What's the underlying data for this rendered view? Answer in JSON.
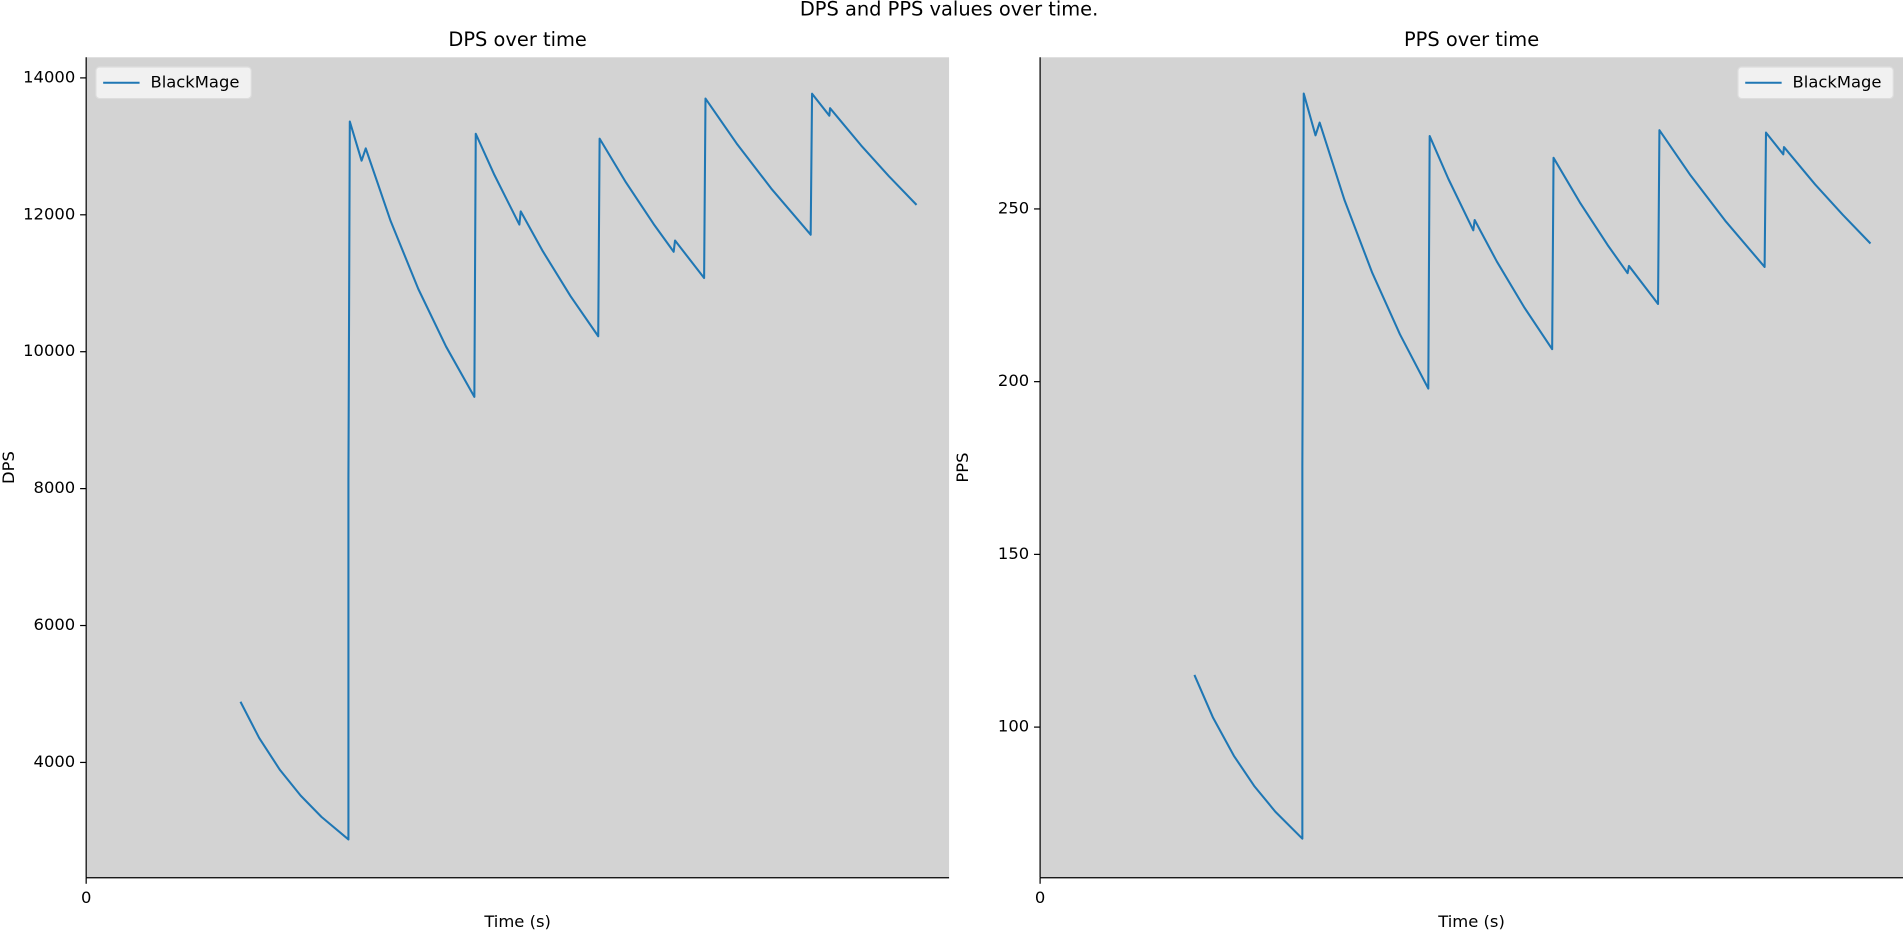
{
  "title": "DPS and PPS values over time.",
  "chart_data": [
    {
      "type": "line",
      "title": "DPS over time",
      "xlabel": "Time (s)",
      "ylabel": "DPS",
      "x": [
        22.3,
        25,
        28,
        31,
        34,
        37.9,
        37.9,
        38.1,
        39.8,
        40.4,
        44,
        48,
        52,
        56.1,
        56.3,
        59,
        62.6,
        62.8,
        66,
        70,
        74.0,
        74.2,
        78,
        82,
        84.9,
        85.1,
        89.3,
        89.5,
        94,
        99,
        104.7,
        104.9,
        107.4,
        107.5,
        112,
        116,
        120
      ],
      "series": [
        {
          "name": "BlackMage",
          "color": "#1f77b4",
          "values": [
            4886,
            4358,
            3891,
            3515,
            3205,
            2875,
            8140,
            13362,
            12791,
            12970,
            11909,
            10916,
            10077,
            9340,
            13184,
            12581,
            11857,
            12050,
            11466,
            10811,
            10226,
            13113,
            12474,
            11866,
            11460,
            11624,
            11077,
            13698,
            13042,
            12384,
            11709,
            13769,
            13448,
            13557,
            13012,
            12564,
            12145
          ]
        }
      ],
      "xlim": [
        0,
        124.7
      ],
      "xticks": [
        0
      ],
      "ylim": [
        2316,
        14301
      ],
      "yticks": [
        4000,
        6000,
        8000,
        10000,
        12000,
        14000
      ],
      "background": "#d3d3d3",
      "legend": "upper left",
      "grid": false
    },
    {
      "type": "line",
      "title": "PPS over time",
      "xlabel": "Time (s)",
      "ylabel": "PPS",
      "x": [
        22.3,
        25,
        28,
        31,
        34,
        37.9,
        37.9,
        38.1,
        39.8,
        40.4,
        44,
        48,
        52,
        56.1,
        56.3,
        59,
        62.6,
        62.8,
        66,
        70,
        74.0,
        74.2,
        78,
        82,
        84.9,
        85.1,
        89.3,
        89.5,
        94,
        99,
        104.7,
        104.9,
        107.4,
        107.5,
        112,
        116,
        120
      ],
      "series": [
        {
          "name": "BlackMage",
          "color": "#1f77b4",
          "values": [
            115.1,
            102.7,
            91.7,
            82.8,
            75.5,
            67.7,
            175.5,
            283.4,
            271.3,
            275.0,
            252.5,
            231.5,
            213.7,
            198.0,
            271.1,
            258.7,
            243.8,
            246.8,
            234.8,
            221.4,
            209.4,
            264.8,
            251.9,
            239.6,
            231.4,
            233.5,
            222.5,
            272.8,
            259.7,
            246.6,
            233.2,
            272.1,
            265.8,
            267.9,
            257.1,
            248.3,
            240.0
          ]
        }
      ],
      "xlim": [
        0,
        124.7
      ],
      "xticks": [
        0
      ],
      "ylim": [
        56.4,
        293.9
      ],
      "yticks": [
        100,
        150,
        200,
        250
      ],
      "background": "#d3d3d3",
      "legend": "upper right",
      "grid": false
    }
  ]
}
